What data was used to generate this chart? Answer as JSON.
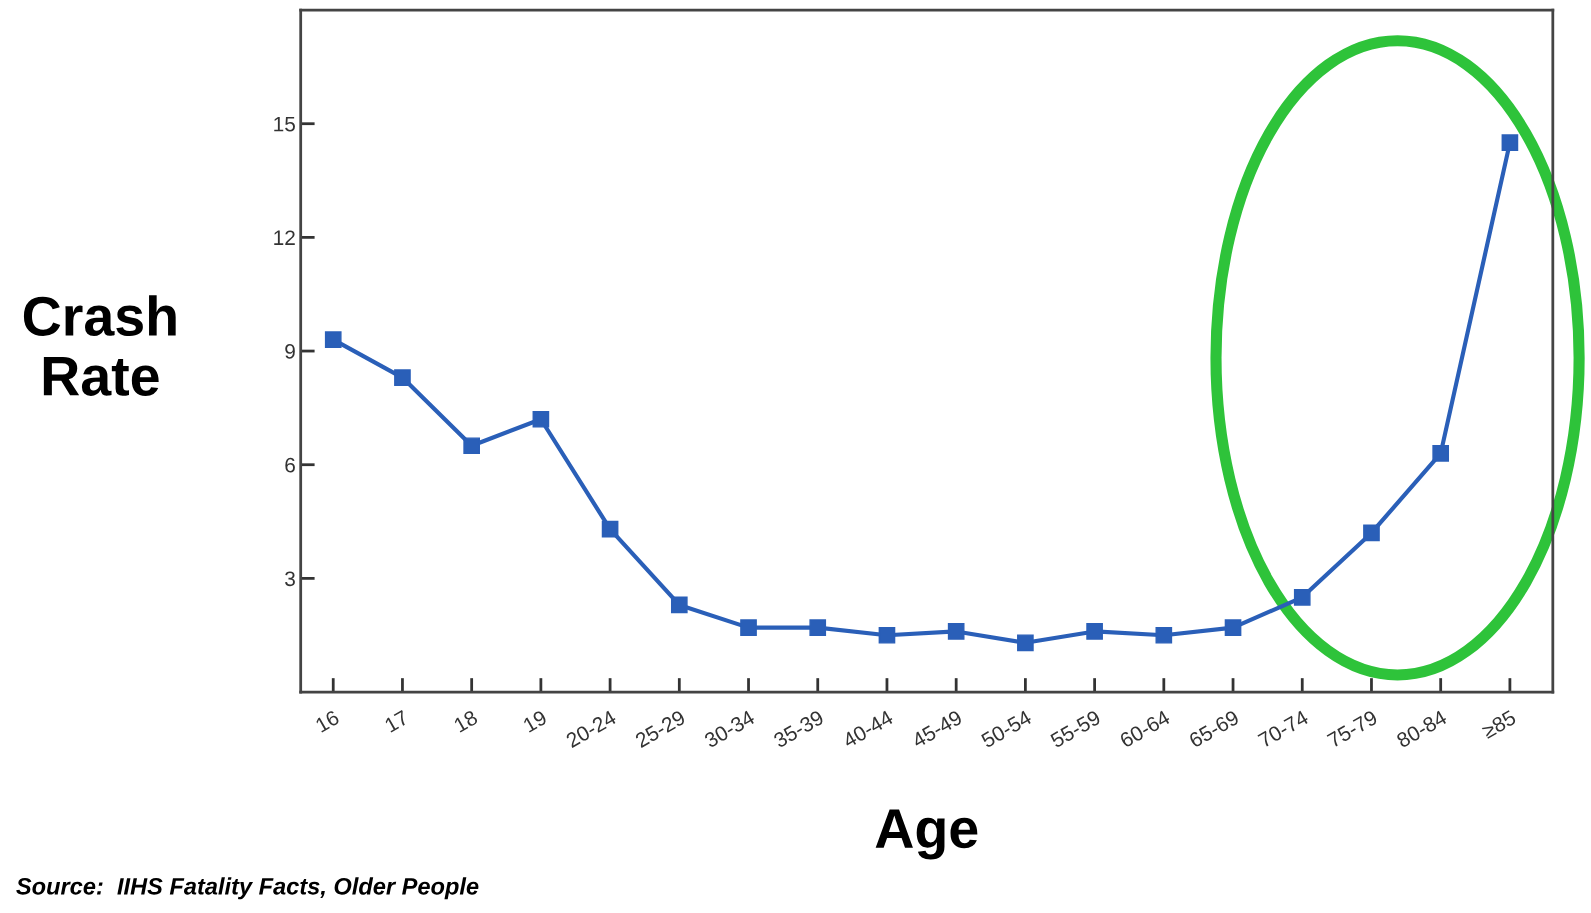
{
  "chart_data": {
    "type": "line",
    "xlabel": "Age",
    "ylabel": "Crash\nRate",
    "categories": [
      "16",
      "17",
      "18",
      "19",
      "20-24",
      "25-29",
      "30-34",
      "35-39",
      "40-44",
      "45-49",
      "50-54",
      "55-59",
      "60-64",
      "65-69",
      "70-74",
      "75-79",
      "80-84",
      "≥85"
    ],
    "series": [
      {
        "color": "#2a5fb8",
        "values": [
          9.3,
          8.3,
          6.5,
          7.2,
          4.3,
          2.3,
          1.7,
          1.7,
          1.5,
          1.6,
          1.3,
          1.6,
          1.5,
          1.7,
          2.5,
          4.2,
          6.3,
          14.5
        ]
      }
    ],
    "ylim": [
      0,
      18
    ],
    "yticks": [
      3,
      6,
      9,
      12,
      15
    ],
    "grid": false,
    "legend": false,
    "marker": "square",
    "line_style": "solid",
    "annotations": [
      "Source:  IIHS Fatality Facts, Older People"
    ]
  }
}
